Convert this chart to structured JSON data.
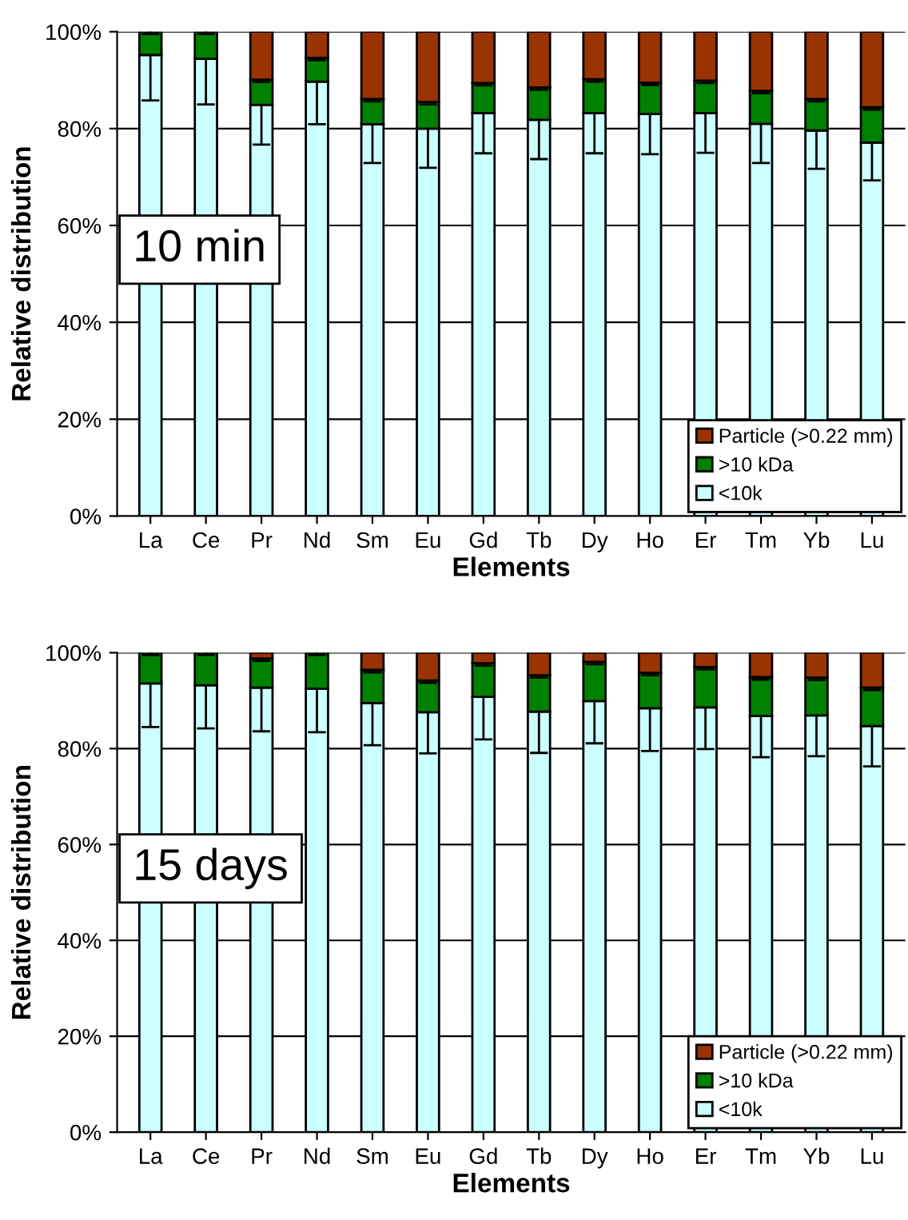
{
  "chart_data": [
    {
      "type": "bar",
      "stacked": true,
      "xlabel": "Elements",
      "ylabel": "Relative distribution",
      "annotations": [
        "10 min"
      ],
      "categories": [
        "La",
        "Ce",
        "Pr",
        "Nd",
        "Sm",
        "Eu",
        "Gd",
        "Tb",
        "Dy",
        "Ho",
        "Er",
        "Tm",
        "Yb",
        "Lu"
      ],
      "ylim": [
        0,
        100
      ],
      "yticks": [
        {
          "value": 0,
          "label": "0%"
        },
        {
          "value": 20,
          "label": "20%"
        },
        {
          "value": 40,
          "label": "40%"
        },
        {
          "value": 60,
          "label": "60%"
        },
        {
          "value": 80,
          "label": "80%"
        },
        {
          "value": 100,
          "label": "100%"
        }
      ],
      "grid": "y",
      "legend": "bottom right",
      "series": [
        {
          "name": "<10k",
          "color": "#ccffff",
          "values": [
            95.2,
            94.4,
            84.9,
            89.7,
            80.9,
            80.0,
            83.2,
            81.8,
            83.2,
            83.0,
            83.2,
            81.0,
            79.6,
            77.1
          ],
          "errors": [
            9.4,
            9.4,
            8.2,
            8.8,
            8.0,
            8.1,
            8.3,
            8.1,
            8.3,
            8.3,
            8.2,
            8.1,
            7.9,
            7.8
          ]
        },
        {
          "name": ">10 kDa",
          "color": "#008000",
          "values": [
            4.8,
            5.6,
            5.2,
            4.9,
            5.2,
            5.5,
            6.2,
            6.7,
            7.0,
            6.5,
            6.7,
            6.8,
            6.5,
            7.3
          ],
          "errors": [
            0.5,
            0.5,
            0.5,
            0.5,
            0.5,
            0.5,
            0.5,
            0.5,
            0.5,
            0.5,
            0.5,
            0.5,
            0.5,
            0.5
          ]
        },
        {
          "name": "Particle (>0.22 mm)",
          "color": "#993300",
          "values": [
            0,
            0,
            9.9,
            5.4,
            13.9,
            14.5,
            10.6,
            11.5,
            9.8,
            10.5,
            10.1,
            12.2,
            13.9,
            15.6
          ]
        }
      ]
    },
    {
      "type": "bar",
      "stacked": true,
      "xlabel": "Elements",
      "ylabel": "Relative distribution",
      "annotations": [
        "15 days"
      ],
      "categories": [
        "La",
        "Ce",
        "Pr",
        "Nd",
        "Sm",
        "Eu",
        "Gd",
        "Tb",
        "Dy",
        "Ho",
        "Er",
        "Tm",
        "Yb",
        "Lu"
      ],
      "ylim": [
        0,
        100
      ],
      "yticks": [
        {
          "value": 0,
          "label": "0%"
        },
        {
          "value": 20,
          "label": "20%"
        },
        {
          "value": 40,
          "label": "40%"
        },
        {
          "value": 60,
          "label": "60%"
        },
        {
          "value": 80,
          "label": "80%"
        },
        {
          "value": 100,
          "label": "100%"
        }
      ],
      "grid": "y",
      "legend": "bottom right",
      "series": [
        {
          "name": "<10k",
          "color": "#ccffff",
          "values": [
            93.6,
            93.2,
            92.7,
            92.5,
            89.5,
            87.6,
            90.8,
            87.7,
            89.9,
            88.4,
            88.6,
            86.8,
            86.9,
            84.7
          ],
          "errors": [
            9.1,
            9.0,
            9.1,
            9.1,
            8.8,
            8.6,
            8.9,
            8.6,
            8.8,
            8.9,
            8.7,
            8.6,
            8.5,
            8.4
          ]
        },
        {
          "name": ">10 kDa",
          "color": "#008000",
          "values": [
            6.4,
            6.8,
            6.1,
            7.5,
            6.9,
            6.6,
            7.0,
            7.6,
            8.2,
            7.4,
            8.4,
            8.1,
            7.9,
            8.0
          ],
          "errors": [
            0.5,
            0.5,
            0.5,
            0.5,
            0.5,
            0.5,
            0.5,
            0.5,
            0.5,
            0.5,
            0.5,
            0.5,
            0.5,
            0.5
          ]
        },
        {
          "name": "Particle (>0.22 mm)",
          "color": "#993300",
          "values": [
            0,
            0,
            1.2,
            0,
            3.6,
            5.8,
            2.2,
            4.7,
            1.9,
            4.2,
            3.0,
            5.1,
            5.2,
            7.3
          ]
        }
      ]
    }
  ]
}
